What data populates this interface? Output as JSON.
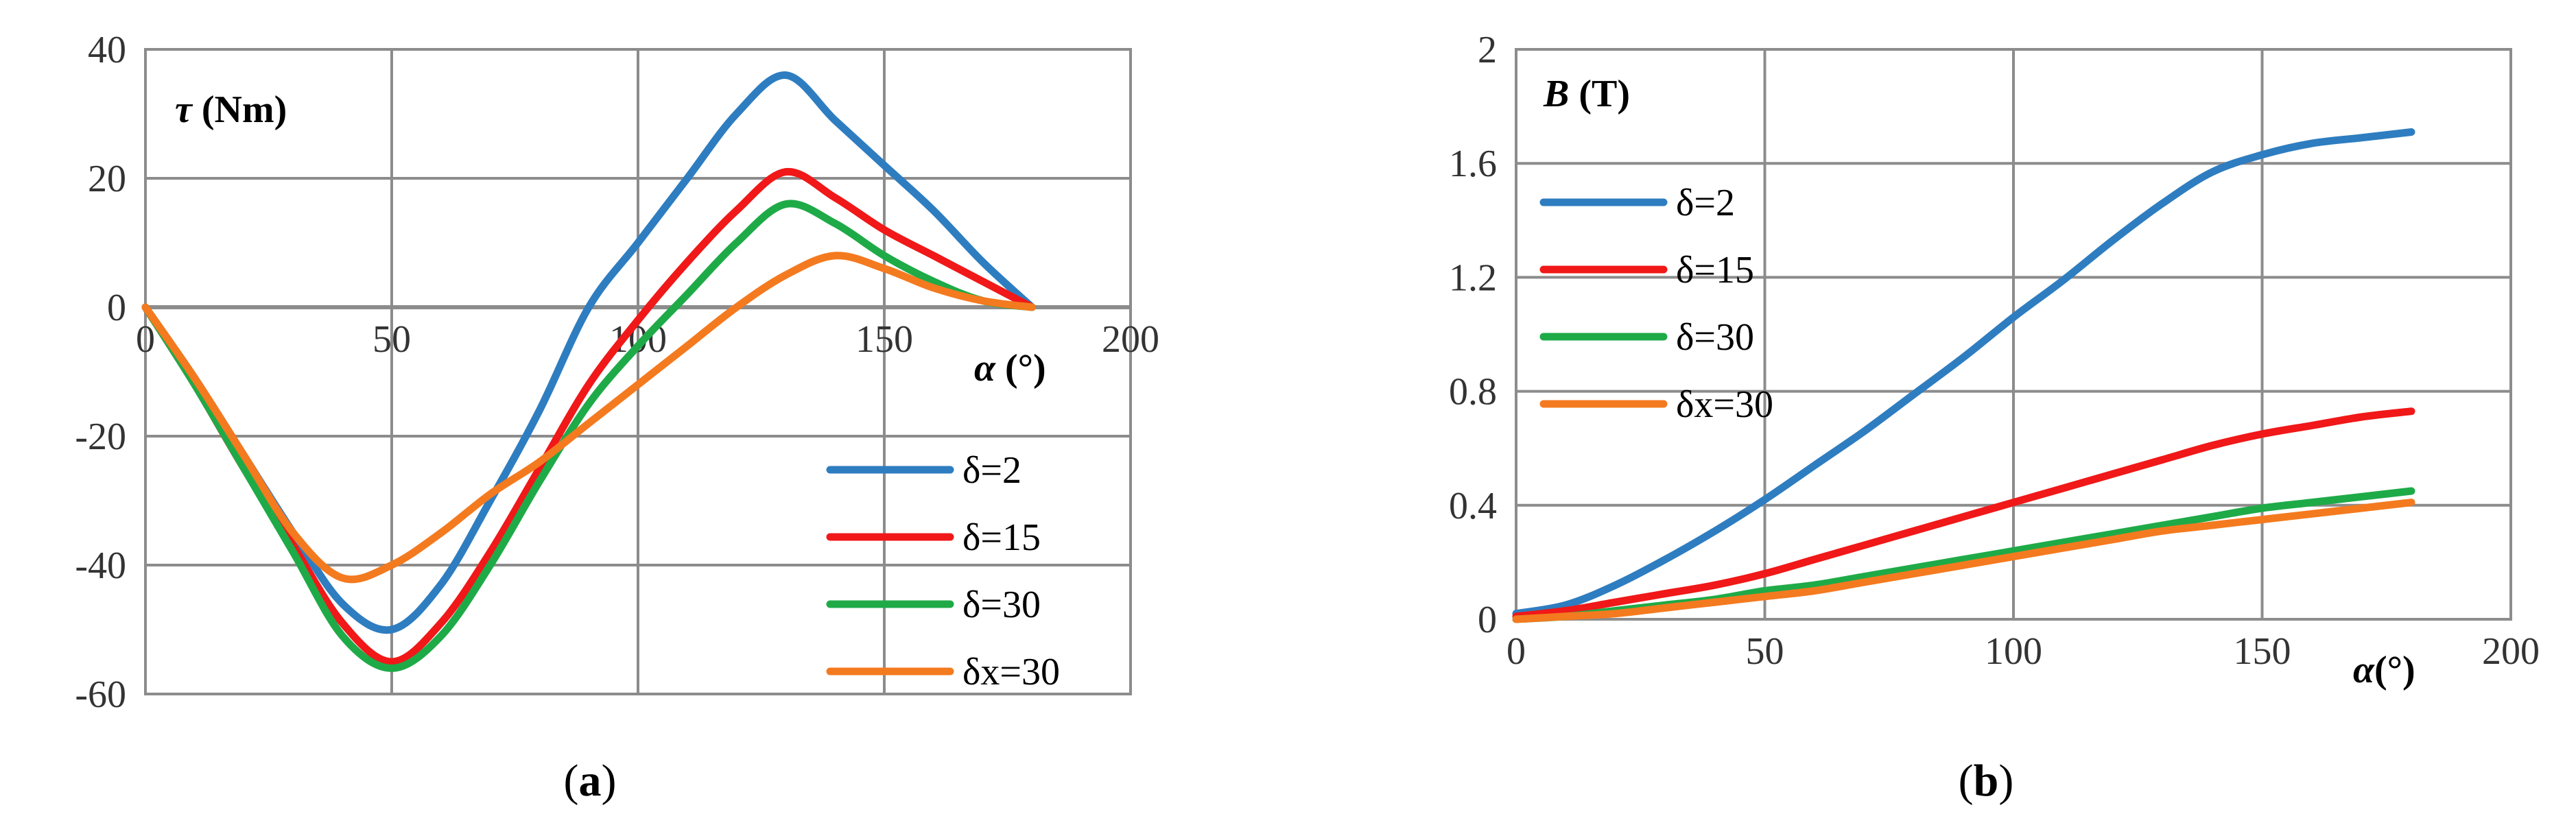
{
  "chart_data": [
    {
      "type": "line",
      "caption_letter": "a",
      "ylabel_symbol": "τ",
      "ylabel_unit": " (Nm)",
      "xlabel_symbol": "α",
      "xlabel_unit": " (°)",
      "xlim": [
        0,
        200
      ],
      "ylim": [
        -60,
        40
      ],
      "xticks": [
        0,
        50,
        100,
        150,
        200
      ],
      "yticks": [
        40,
        20,
        0,
        -20,
        -40,
        -60
      ],
      "legend_position": "bottom-right",
      "series": [
        {
          "name": "δ=2",
          "color": "#2E7DC0",
          "x": [
            0,
            10,
            20,
            30,
            40,
            50,
            60,
            70,
            80,
            90,
            100,
            110,
            120,
            130,
            140,
            150,
            160,
            170,
            180
          ],
          "y": [
            0,
            -11,
            -23,
            -35,
            -46,
            -50,
            -43,
            -30,
            -16,
            0,
            10,
            20,
            30,
            36,
            29,
            22,
            15,
            7,
            0
          ]
        },
        {
          "name": "δ=15",
          "color": "#F01818",
          "x": [
            0,
            10,
            20,
            30,
            40,
            50,
            60,
            70,
            80,
            90,
            100,
            110,
            120,
            130,
            140,
            150,
            160,
            170,
            180
          ],
          "y": [
            0,
            -12,
            -25,
            -37,
            -49,
            -55,
            -49,
            -38,
            -25,
            -12,
            -2,
            7,
            15,
            21,
            17,
            12,
            8,
            4,
            0
          ]
        },
        {
          "name": "δ=30",
          "color": "#1FAA48",
          "x": [
            0,
            10,
            20,
            30,
            40,
            50,
            60,
            70,
            80,
            90,
            100,
            110,
            120,
            130,
            140,
            150,
            160,
            170,
            180
          ],
          "y": [
            0,
            -12,
            -25,
            -38,
            -51,
            -56,
            -51,
            -40,
            -27,
            -15,
            -6,
            2,
            10,
            16,
            13,
            8,
            4,
            1,
            0
          ]
        },
        {
          "name": "δx=30",
          "color": "#F47A1F",
          "x": [
            0,
            10,
            20,
            30,
            40,
            50,
            60,
            70,
            80,
            90,
            100,
            110,
            120,
            130,
            140,
            150,
            160,
            170,
            180
          ],
          "y": [
            0,
            -11,
            -23,
            -35,
            -42,
            -40,
            -35,
            -29,
            -24,
            -18,
            -12,
            -6,
            0,
            5,
            8,
            6,
            3,
            1,
            0
          ]
        }
      ]
    },
    {
      "type": "line",
      "caption_letter": "b",
      "ylabel_symbol": "B",
      "ylabel_unit": " (T)",
      "xlabel_symbol": "α",
      "xlabel_unit": "(°)",
      "xlim": [
        0,
        200
      ],
      "ylim": [
        0,
        2
      ],
      "xticks": [
        0,
        50,
        100,
        150,
        200
      ],
      "yticks": [
        2,
        1.6,
        1.2,
        0.8,
        0.4,
        0
      ],
      "legend_position": "top-left",
      "series": [
        {
          "name": "δ=2",
          "color": "#2E7DC0",
          "x": [
            0,
            10,
            20,
            30,
            40,
            50,
            60,
            70,
            80,
            90,
            100,
            110,
            120,
            130,
            140,
            150,
            160,
            170,
            180
          ],
          "y": [
            0.02,
            0.05,
            0.12,
            0.21,
            0.31,
            0.42,
            0.54,
            0.66,
            0.79,
            0.92,
            1.06,
            1.19,
            1.33,
            1.46,
            1.57,
            1.63,
            1.67,
            1.69,
            1.71
          ]
        },
        {
          "name": "δ=15",
          "color": "#F01818",
          "x": [
            0,
            10,
            20,
            30,
            40,
            50,
            60,
            70,
            80,
            90,
            100,
            110,
            120,
            130,
            140,
            150,
            160,
            170,
            180
          ],
          "y": [
            0.01,
            0.03,
            0.06,
            0.09,
            0.12,
            0.16,
            0.21,
            0.26,
            0.31,
            0.36,
            0.41,
            0.46,
            0.51,
            0.56,
            0.61,
            0.65,
            0.68,
            0.71,
            0.73
          ]
        },
        {
          "name": "δ=30",
          "color": "#1FAA48",
          "x": [
            0,
            10,
            20,
            30,
            40,
            50,
            60,
            70,
            80,
            90,
            100,
            110,
            120,
            130,
            140,
            150,
            160,
            170,
            180
          ],
          "y": [
            0.0,
            0.01,
            0.03,
            0.05,
            0.07,
            0.1,
            0.12,
            0.15,
            0.18,
            0.21,
            0.24,
            0.27,
            0.3,
            0.33,
            0.36,
            0.39,
            0.41,
            0.43,
            0.45
          ]
        },
        {
          "name": "δx=30",
          "color": "#F47A1F",
          "x": [
            0,
            10,
            20,
            30,
            40,
            50,
            60,
            70,
            80,
            90,
            100,
            110,
            120,
            130,
            140,
            150,
            160,
            170,
            180
          ],
          "y": [
            0.0,
            0.01,
            0.02,
            0.04,
            0.06,
            0.08,
            0.1,
            0.13,
            0.16,
            0.19,
            0.22,
            0.25,
            0.28,
            0.31,
            0.33,
            0.35,
            0.37,
            0.39,
            0.41
          ]
        }
      ]
    }
  ]
}
